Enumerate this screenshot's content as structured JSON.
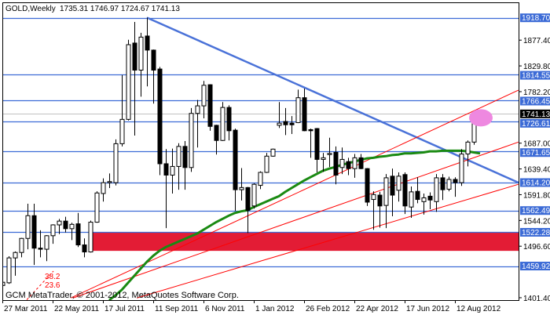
{
  "header": {
    "symbol_timeframe": "GOLD,Weekly",
    "ohlc": "1735.31 1746.97 1724.67 1741.13"
  },
  "watermark": "GCM MetaTrader, © 2001-2012, MetaQuotes Software Corp.",
  "colors": {
    "background": "#ffffff",
    "level_line": "#3c6bd6",
    "trendline": "#4a72d8",
    "channel_line": "#ff0000",
    "moving_average": "#1a8a12",
    "zone": "#e31c35",
    "highlight": "#ee88e0",
    "bid_line": "#c0c0c0",
    "bull_candle": "#ffffff",
    "bear_candle": "#000000"
  },
  "chart_data": {
    "type": "candlestick",
    "title": "GOLD,Weekly",
    "interval": "weekly",
    "ylim": [
      1401.4,
      1925.0
    ],
    "grid": false,
    "x_tick_labels": [
      "27 Mar 2011",
      "22 May 2011",
      "17 Jul 2011",
      "11 Sep 2011",
      "6 Nov 2011",
      "1 Jan 2012",
      "26 Feb 2012",
      "22 Apr 2012",
      "17 Jun 2012",
      "12 Aug 2012"
    ],
    "y_tick_labels": [
      "1877.40",
      "1829.80",
      "1782.20",
      "1687.00",
      "1639.40",
      "1591.80",
      "1544.20",
      "1496.60",
      "1401.40"
    ],
    "price_levels": [
      "1918.70",
      "1814.55",
      "1766.45",
      "1726.61",
      "1671.65",
      "1614.20",
      "1562.49",
      "1522.28",
      "1459.92"
    ],
    "current_price": "1741.13",
    "candles_ohlc": [
      [
        1424,
        1437,
        1410,
        1430
      ],
      [
        1429,
        1478,
        1427,
        1475
      ],
      [
        1475,
        1487,
        1442,
        1485
      ],
      [
        1485,
        1512,
        1476,
        1511
      ],
      [
        1511,
        1575,
        1491,
        1553
      ],
      [
        1553,
        1575,
        1462,
        1493
      ],
      [
        1493,
        1526,
        1476,
        1491
      ],
      [
        1491,
        1517,
        1469,
        1516
      ],
      [
        1516,
        1537,
        1501,
        1536
      ],
      [
        1536,
        1547,
        1519,
        1543
      ],
      [
        1543,
        1551,
        1522,
        1529
      ],
      [
        1529,
        1540,
        1508,
        1537
      ],
      [
        1538,
        1558,
        1495,
        1499
      ],
      [
        1499,
        1511,
        1476,
        1486
      ],
      [
        1486,
        1544,
        1485,
        1541
      ],
      [
        1541,
        1598,
        1540,
        1595
      ],
      [
        1594,
        1622,
        1579,
        1614
      ],
      [
        1614,
        1631,
        1604,
        1616
      ],
      [
        1614,
        1694,
        1609,
        1686
      ],
      [
        1686,
        1813,
        1681,
        1731
      ],
      [
        1731,
        1878,
        1729,
        1869
      ],
      [
        1872,
        1911,
        1701,
        1822
      ],
      [
        1822,
        1891,
        1773,
        1883
      ],
      [
        1885,
        1919,
        1792,
        1859
      ],
      [
        1859,
        1860,
        1760,
        1822
      ],
      [
        1824,
        1828,
        1628,
        1649
      ],
      [
        1649,
        1676,
        1530,
        1628
      ],
      [
        1628,
        1677,
        1594,
        1644
      ],
      [
        1644,
        1687,
        1601,
        1681
      ],
      [
        1681,
        1691,
        1601,
        1642
      ],
      [
        1642,
        1752,
        1634,
        1742
      ],
      [
        1742,
        1767,
        1679,
        1756
      ],
      [
        1756,
        1802,
        1733,
        1794
      ],
      [
        1795,
        1796,
        1710,
        1718
      ],
      [
        1720,
        1721,
        1666,
        1692
      ],
      [
        1692,
        1763,
        1691,
        1753
      ],
      [
        1753,
        1757,
        1692,
        1710
      ],
      [
        1711,
        1714,
        1562,
        1601
      ],
      [
        1601,
        1641,
        1581,
        1605
      ],
      [
        1605,
        1606,
        1521,
        1563
      ],
      [
        1571,
        1613,
        1566,
        1611
      ],
      [
        1609,
        1635,
        1602,
        1633
      ],
      [
        1633,
        1669,
        1632,
        1663
      ],
      [
        1663,
        1677,
        1662,
        1676
      ],
      [
        1720,
        1763,
        1715,
        1724
      ],
      [
        1727,
        1752,
        1702,
        1721
      ],
      [
        1724,
        1737,
        1704,
        1721
      ],
      [
        1725,
        1786,
        1724,
        1771
      ],
      [
        1771,
        1788,
        1709,
        1710
      ],
      [
        1712,
        1714,
        1660,
        1710
      ],
      [
        1714,
        1715,
        1633,
        1657
      ],
      [
        1657,
        1669,
        1634,
        1660
      ],
      [
        1666,
        1697,
        1643,
        1668
      ],
      [
        1670,
        1681,
        1611,
        1628
      ],
      [
        1642,
        1679,
        1630,
        1657
      ],
      [
        1653,
        1660,
        1628,
        1640
      ],
      [
        1640,
        1667,
        1623,
        1660
      ],
      [
        1660,
        1667,
        1639,
        1640
      ],
      [
        1640,
        1641,
        1571,
        1578
      ],
      [
        1583,
        1598,
        1527,
        1592
      ],
      [
        1591,
        1597,
        1531,
        1571
      ],
      [
        1572,
        1630,
        1530,
        1623
      ],
      [
        1626,
        1640,
        1552,
        1591
      ],
      [
        1600,
        1633,
        1579,
        1626
      ],
      [
        1629,
        1633,
        1556,
        1571
      ],
      [
        1569,
        1607,
        1549,
        1597
      ],
      [
        1598,
        1624,
        1576,
        1583
      ],
      [
        1579,
        1594,
        1555,
        1586
      ],
      [
        1589,
        1596,
        1565,
        1582
      ],
      [
        1579,
        1630,
        1560,
        1623
      ],
      [
        1623,
        1630,
        1582,
        1601
      ],
      [
        1602,
        1625,
        1598,
        1620
      ],
      [
        1620,
        1624,
        1588,
        1614
      ],
      [
        1614,
        1676,
        1608,
        1667
      ],
      [
        1667,
        1692,
        1644,
        1689
      ],
      [
        1689,
        1742,
        1684,
        1736
      ],
      [
        1735.31,
        1746.97,
        1724.67,
        1741.13
      ]
    ],
    "moving_average": [
      null,
      null,
      null,
      null,
      null,
      null,
      null,
      null,
      null,
      null,
      null,
      null,
      null,
      null,
      null,
      null,
      null,
      1397,
      1406,
      1416,
      1429,
      1442,
      1455,
      1468,
      1479,
      1488,
      1495,
      1500,
      1505,
      1510,
      1515,
      1520,
      1527,
      1534,
      1541,
      1547,
      1553,
      1558,
      1561,
      1563,
      1569,
      1574,
      1579,
      1584,
      1589,
      1597,
      1604,
      1611,
      1618,
      1624,
      1630,
      1636,
      1640,
      1643,
      1647,
      1650,
      1653,
      1656,
      1659,
      1660,
      1662,
      1663,
      1665,
      1666,
      1668,
      1668,
      1669,
      1670,
      1672,
      1672,
      1673,
      1673,
      1673,
      1673,
      1672,
      1670,
      1668
    ],
    "trendlines": [
      {
        "kind": "resistance",
        "from": [
          23,
          1919
        ],
        "to": [
          82.1,
          1614.2
        ]
      },
      {
        "kind": "channel",
        "from": [
          10.9,
          1401
        ],
        "to": [
          82.1,
          1785
        ]
      },
      {
        "kind": "channel",
        "from": [
          11.25,
          1401
        ],
        "to": [
          82.1,
          1689
        ]
      },
      {
        "kind": "channel",
        "from": [
          21.4,
          1401
        ],
        "to": [
          82.1,
          1611
        ]
      }
    ],
    "zone": {
      "from_candle": 14.3,
      "price_range": [
        1488,
        1522.28
      ]
    },
    "fib_labels": [
      "38.2",
      "23.6"
    ],
    "highlight_candle": 76
  }
}
